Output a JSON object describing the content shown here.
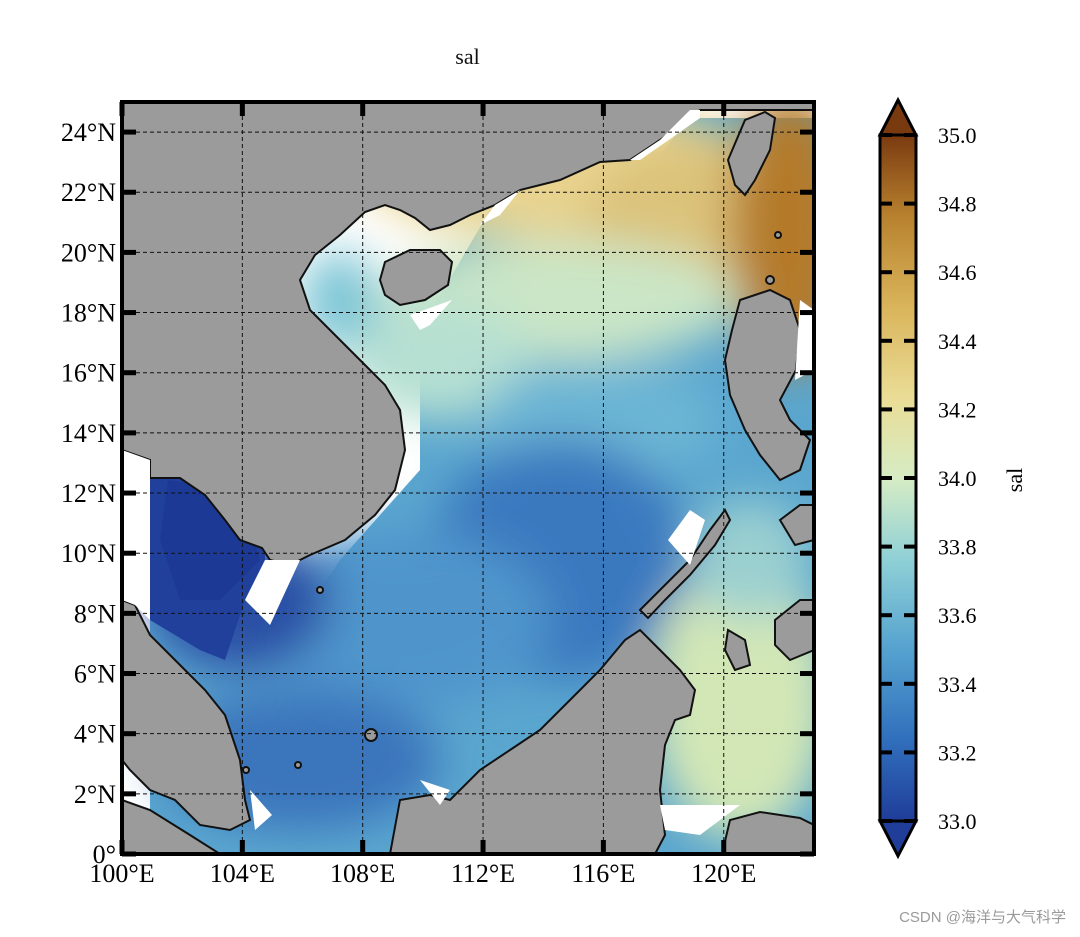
{
  "figure": {
    "title": "sal",
    "watermark": "CSDN @海洋与大气科学"
  },
  "chart_data": {
    "type": "heatmap",
    "variable": "sal",
    "region": {
      "lon_range": [
        100,
        123
      ],
      "lat_range": [
        0,
        25
      ]
    },
    "x_ticks": [
      "100°E",
      "104°E",
      "108°E",
      "112°E",
      "116°E",
      "120°E"
    ],
    "y_ticks": [
      "0°",
      "2°N",
      "4°N",
      "6°N",
      "8°N",
      "10°N",
      "12°N",
      "14°N",
      "16°N",
      "18°N",
      "20°N",
      "22°N",
      "24°N"
    ],
    "grid": true,
    "grid_style": "dashed",
    "land_color": "#9b9b9b",
    "colorbar": {
      "label": "sal",
      "range": [
        33.0,
        35.0
      ],
      "ticks": [
        "33.0",
        "33.2",
        "33.4",
        "33.6",
        "33.8",
        "34.0",
        "34.2",
        "34.4",
        "34.6",
        "34.8",
        "35.0"
      ],
      "extend": "both",
      "colors": [
        "#1f3d99",
        "#3170bd",
        "#55a2cf",
        "#8fd0d6",
        "#d6ecc4",
        "#eadc95",
        "#d9b45a",
        "#b8822f",
        "#7a3a10"
      ]
    },
    "field_description_values": {
      "gulf_of_thailand": 33.1,
      "southern_basin_center": 33.5,
      "central_basin": 33.7,
      "gulf_of_tonkin": 33.8,
      "northern_shelf": 34.3,
      "luzon_strait": 34.6,
      "sulu_sea": 34.1
    }
  }
}
